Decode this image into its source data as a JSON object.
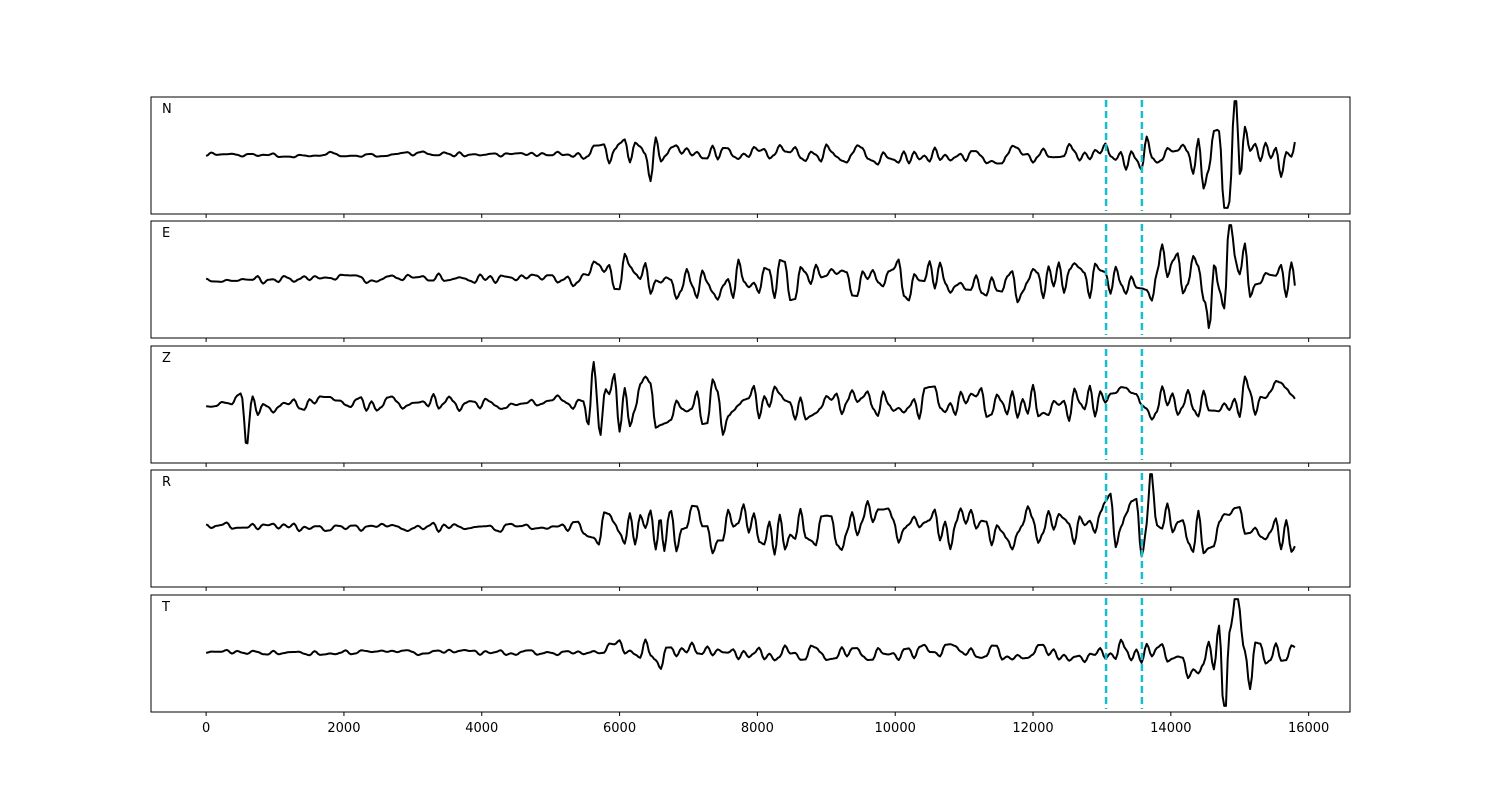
{
  "chart_data": {
    "type": "line",
    "xlim": [
      -800,
      16600
    ],
    "x_ticks": [
      0,
      2000,
      4000,
      6000,
      8000,
      10000,
      12000,
      14000,
      16000
    ],
    "x_tick_labels": [
      "0",
      "2000",
      "4000",
      "6000",
      "8000",
      "10000",
      "12000",
      "14000",
      "16000"
    ],
    "x_range": [
      0,
      15800
    ],
    "y_range": [
      -1,
      1
    ],
    "y_ticks_visible": false,
    "grid": false,
    "line_color": "#000000",
    "marker_color": "#17becf",
    "markers_x": [
      13060,
      13580
    ],
    "marker_style": "dashed",
    "panels": [
      {
        "label": "N",
        "segments": [
          {
            "x0": 0,
            "x1": 5300,
            "amp": 0.07
          },
          {
            "x0": 5300,
            "x1": 5600,
            "amp": 0.12
          },
          {
            "x0": 5600,
            "x1": 6300,
            "amp": 0.45
          },
          {
            "x0": 6300,
            "x1": 6800,
            "amp": 0.6
          },
          {
            "x0": 6800,
            "x1": 13000,
            "amp": 0.24
          },
          {
            "x0": 13000,
            "x1": 13700,
            "amp": 0.55
          },
          {
            "x0": 13700,
            "x1": 14400,
            "amp": 0.45
          },
          {
            "x0": 14400,
            "x1": 15100,
            "amp": 0.95
          },
          {
            "x0": 15100,
            "x1": 15800,
            "amp": 0.45
          }
        ],
        "spikes": [
          {
            "x": 14780,
            "v": -0.9
          },
          {
            "x": 14950,
            "v": 0.88
          }
        ]
      },
      {
        "label": "E",
        "segments": [
          {
            "x0": 0,
            "x1": 5300,
            "amp": 0.1
          },
          {
            "x0": 5300,
            "x1": 5600,
            "amp": 0.2
          },
          {
            "x0": 5600,
            "x1": 13000,
            "amp": 0.5
          },
          {
            "x0": 13000,
            "x1": 13700,
            "amp": 0.55
          },
          {
            "x0": 13700,
            "x1": 14700,
            "amp": 0.75
          },
          {
            "x0": 14700,
            "x1": 15200,
            "amp": 0.9
          },
          {
            "x0": 15200,
            "x1": 15800,
            "amp": 0.4
          }
        ],
        "spikes": [
          {
            "x": 14560,
            "v": -0.92
          },
          {
            "x": 14860,
            "v": 0.75
          }
        ]
      },
      {
        "label": "Z",
        "segments": [
          {
            "x0": 0,
            "x1": 400,
            "amp": 0.08
          },
          {
            "x0": 400,
            "x1": 1200,
            "amp": 0.35
          },
          {
            "x0": 1200,
            "x1": 5400,
            "amp": 0.18
          },
          {
            "x0": 5400,
            "x1": 7600,
            "amp": 0.75
          },
          {
            "x0": 7600,
            "x1": 13000,
            "amp": 0.45
          },
          {
            "x0": 13000,
            "x1": 15000,
            "amp": 0.4
          },
          {
            "x0": 15000,
            "x1": 15800,
            "amp": 0.55
          }
        ],
        "spikes": [
          {
            "x": 5620,
            "v": 0.88
          },
          {
            "x": 5720,
            "v": -0.82
          },
          {
            "x": 580,
            "v": -0.62
          }
        ]
      },
      {
        "label": "R",
        "segments": [
          {
            "x0": 0,
            "x1": 5300,
            "amp": 0.1
          },
          {
            "x0": 5300,
            "x1": 5600,
            "amp": 0.2
          },
          {
            "x0": 5600,
            "x1": 13000,
            "amp": 0.55
          },
          {
            "x0": 13000,
            "x1": 14000,
            "amp": 0.8
          },
          {
            "x0": 14000,
            "x1": 15800,
            "amp": 0.6
          }
        ],
        "spikes": [
          {
            "x": 6650,
            "v": -0.8
          },
          {
            "x": 13710,
            "v": 0.85
          }
        ]
      },
      {
        "label": "T",
        "segments": [
          {
            "x0": 0,
            "x1": 5800,
            "amp": 0.06
          },
          {
            "x0": 5800,
            "x1": 6700,
            "amp": 0.35
          },
          {
            "x0": 6700,
            "x1": 13000,
            "amp": 0.2
          },
          {
            "x0": 13000,
            "x1": 14200,
            "amp": 0.3
          },
          {
            "x0": 14200,
            "x1": 15200,
            "amp": 0.8
          },
          {
            "x0": 15200,
            "x1": 15800,
            "amp": 0.35
          }
        ],
        "spikes": [
          {
            "x": 14780,
            "v": -0.92
          },
          {
            "x": 14960,
            "v": 0.88
          }
        ]
      }
    ]
  }
}
